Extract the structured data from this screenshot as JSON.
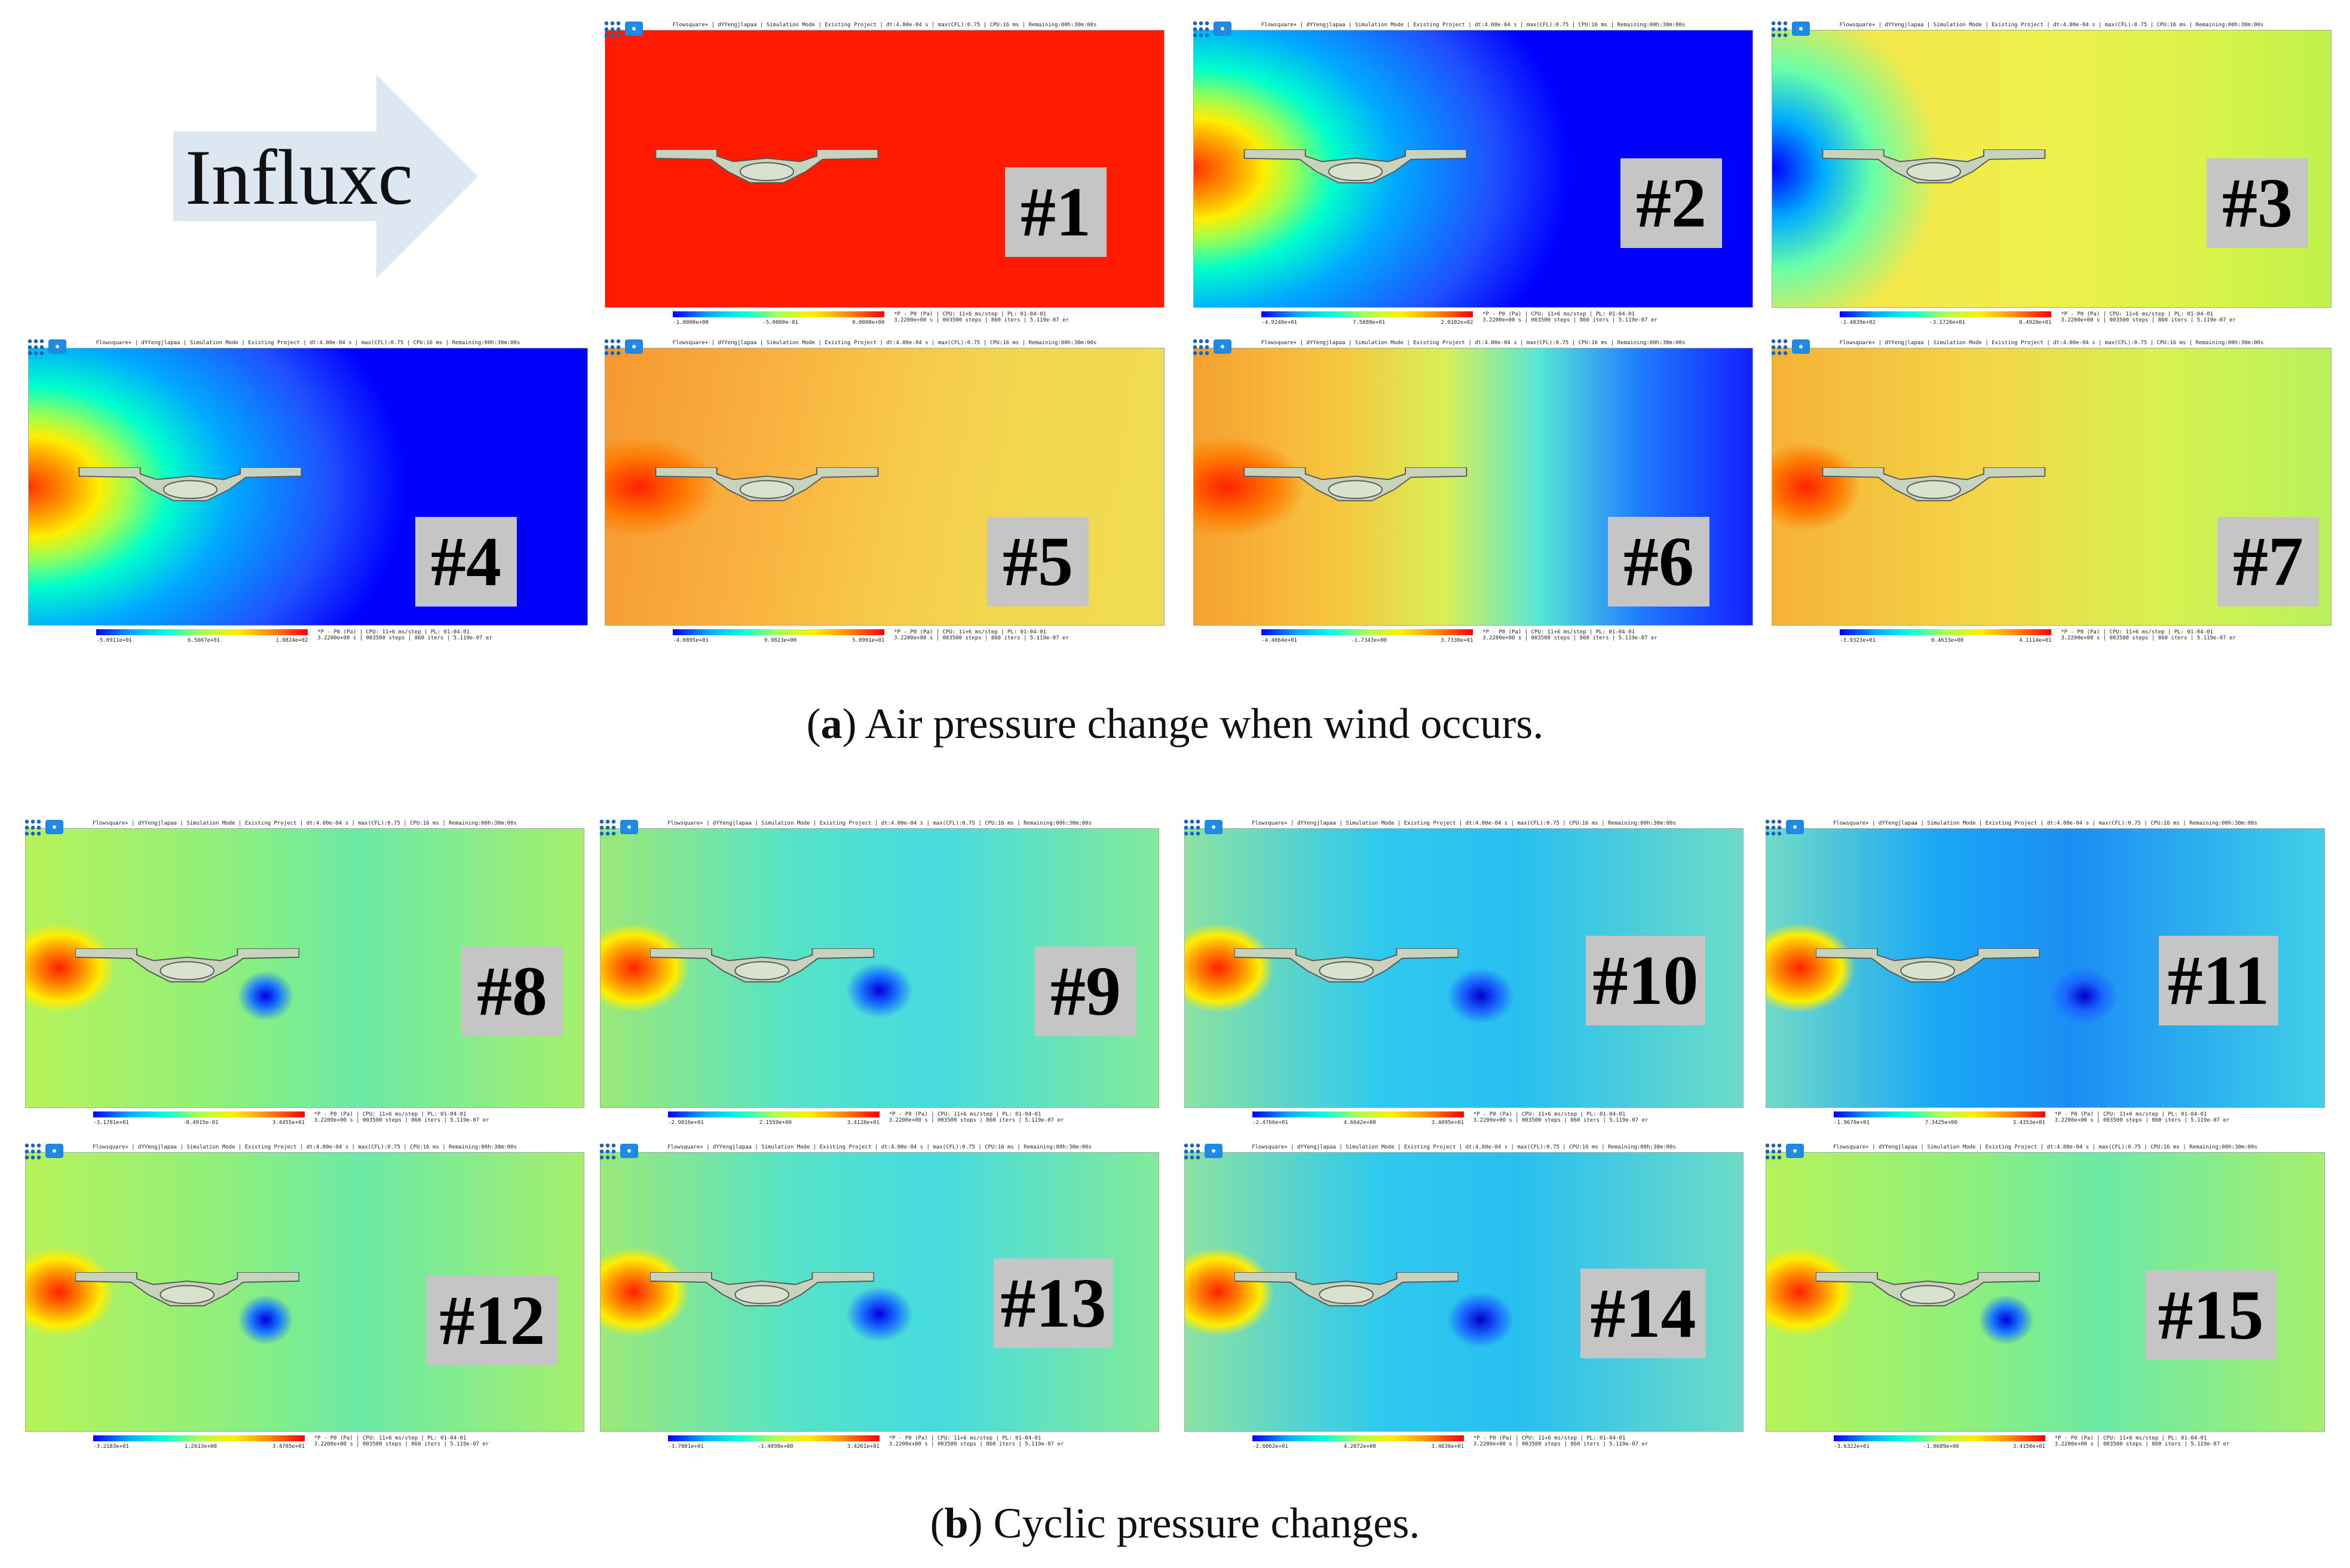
{
  "arrow": {
    "text": "Influxc",
    "color": "#dde7f2"
  },
  "captions": {
    "a_letter": "a",
    "a_text": ") Air pressure change when wind occurs.",
    "b_letter": "b",
    "b_text": ") Cyclic pressure changes."
  },
  "panel_common": {
    "title": "Flowsquare+ | dYYengjlapaa | Simulation Mode | Existing Project | dt:4.00e-04 s | max(CFL):0.75 | CPU:16 ms | Remaining:00h:30m:00s",
    "meta_line1": "*P - P0 (Pa) | CPU: 11+6 ms/step | PL: 01-04-01",
    "meta_line2": "3.2200e+00 s | 003500 steps | 860 iters | 5.119e-07 er"
  },
  "panels": [
    {
      "label": "#1",
      "style": "red",
      "vals": [
        "-1.0000e+00",
        "-5.0000e-01",
        "0.0000e+00"
      ]
    },
    {
      "label": "#2",
      "style": "blueL",
      "vals": [
        "-4.9240e+01",
        "7.5880e+01",
        "2.0102e+02"
      ]
    },
    {
      "label": "#3",
      "style": "yellowB",
      "vals": [
        "-1.4839e+02",
        "-3.1720e+01",
        "8.4920e+01"
      ]
    },
    {
      "label": "#4",
      "style": "blueL",
      "vals": [
        "-5.0911e+01",
        "6.5667e+01",
        "1.8824e+02"
      ]
    },
    {
      "label": "#5",
      "style": "orange",
      "vals": [
        "-4.0895e+01",
        "9.9823e+00",
        "5.0991e+01"
      ]
    },
    {
      "label": "#6",
      "style": "mixed",
      "vals": [
        "-4.4064e+01",
        "-1.7343e+00",
        "3.7330e+01"
      ]
    },
    {
      "label": "#7",
      "style": "yellowG",
      "vals": [
        "-3.9323e+01",
        "0.4633e+00",
        "4.1114e+01"
      ]
    },
    {
      "label": "#8",
      "style": "cyc1",
      "vals": [
        "-3.1781e+01",
        "-8.4915e-01",
        "3.4455e+01"
      ]
    },
    {
      "label": "#9",
      "style": "cyc2",
      "vals": [
        "-2.9816e+01",
        "2.1559e+00",
        "3.4128e+01"
      ]
    },
    {
      "label": "#10",
      "style": "cyc3",
      "vals": [
        "-2.4766e+01",
        "4.6642e+00",
        "3.4095e+01"
      ]
    },
    {
      "label": "#11",
      "style": "cyc4",
      "vals": [
        "-1.9670e+01",
        "7.3425e+00",
        "3.4353e+01"
      ]
    },
    {
      "label": "#12",
      "style": "cyc1",
      "vals": [
        "-3.2183e+01",
        "1.2613e+00",
        "3.4705e+01"
      ]
    },
    {
      "label": "#13",
      "style": "cyc2",
      "vals": [
        "-3.7801e+01",
        "-1.4098e+00",
        "3.4261e+01"
      ]
    },
    {
      "label": "#14",
      "style": "cyc3",
      "vals": [
        "-2.6062e+01",
        "4.2872e+00",
        "3.4636e+01"
      ]
    },
    {
      "label": "#15",
      "style": "cyc1",
      "vals": [
        "-3.6322e+01",
        "-1.0689e+00",
        "3.4150e+01"
      ]
    }
  ]
}
